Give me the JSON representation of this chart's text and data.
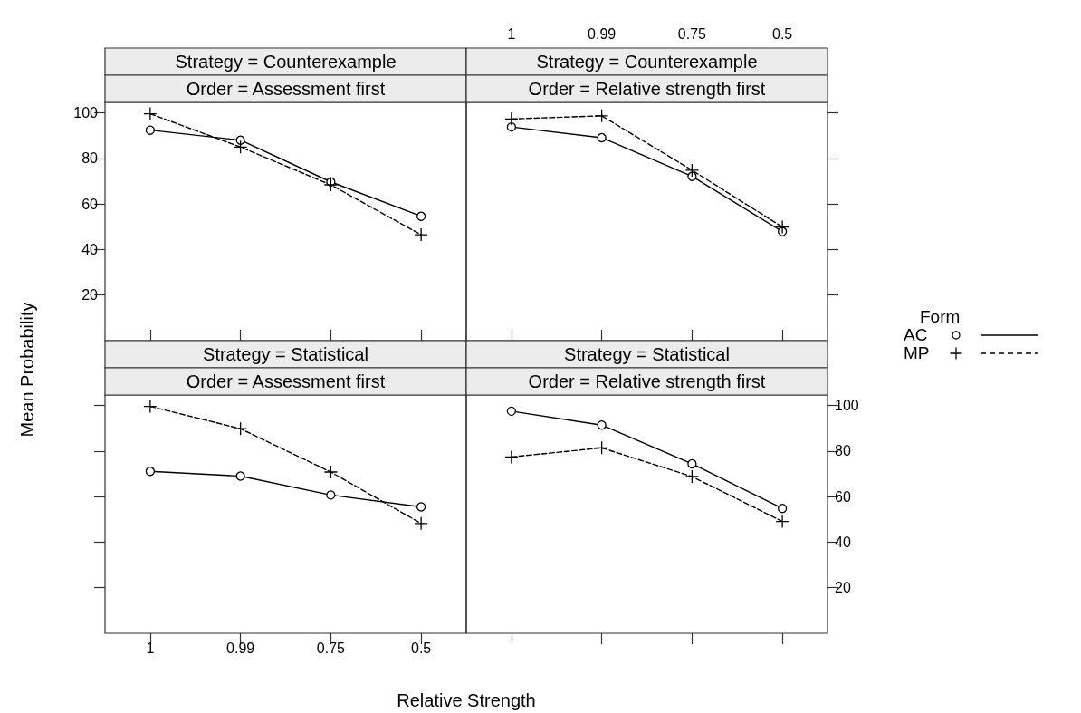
{
  "chart_data": [
    {
      "type": "line",
      "title": "Strategy = Counterexample",
      "subtitle": "Order = Assessment first",
      "ylabel": "Mean Probability",
      "categories": [
        "1",
        "0.99",
        "0.75",
        "0.5"
      ],
      "ylim": [
        0,
        104.6
      ],
      "yticks": [
        20,
        40,
        60,
        80,
        100
      ],
      "tick_labels": "y",
      "series": [
        {
          "color": "#000000",
          "marker": "circle",
          "line_style": "solid",
          "values": [
            92.4,
            88,
            69.7,
            54.6
          ]
        },
        {
          "color": "#000000",
          "marker": "cross",
          "line_style": "dashed",
          "values": [
            99.6,
            85,
            68.4,
            46.5
          ]
        }
      ]
    },
    {
      "type": "line",
      "title": "Strategy = Counterexample",
      "subtitle": "Order = Relative strength first",
      "legend": "right",
      "legend_title": "Form",
      "categories": [
        "1",
        "0.99",
        "0.75",
        "0.5"
      ],
      "ylim": [
        0,
        104.6
      ],
      "yticks": [
        20,
        40,
        60,
        80,
        100
      ],
      "tick_labels": "x",
      "series": [
        {
          "name": "AC",
          "color": "#000000",
          "marker": "circle",
          "line_style": "solid",
          "values": [
            93.8,
            89.1,
            72.1,
            47.9
          ]
        },
        {
          "name": "MP",
          "color": "#000000",
          "marker": "cross",
          "line_style": "dashed",
          "values": [
            97.3,
            98.7,
            74.8,
            49.9
          ]
        }
      ]
    },
    {
      "type": "line",
      "title": "Strategy = Statistical",
      "subtitle": "Order = Assessment first",
      "xlabel": "Relative Strength",
      "categories": [
        "1",
        "0.99",
        "0.75",
        "0.5"
      ],
      "ylim": [
        0,
        104.6
      ],
      "yticks": [
        20,
        40,
        60,
        80,
        100
      ],
      "tick_labels": "x",
      "series": [
        {
          "color": "#000000",
          "marker": "circle",
          "line_style": "solid",
          "values": [
            71.1,
            69.0,
            60.7,
            55.5
          ]
        },
        {
          "color": "#000000",
          "marker": "cross",
          "line_style": "dashed",
          "values": [
            99.6,
            89.8,
            70.8,
            48.2
          ]
        }
      ]
    },
    {
      "type": "line",
      "title": "Strategy = Statistical",
      "subtitle": "Order = Relative strength first",
      "categories": [
        "1",
        "0.99",
        "0.75",
        "0.5"
      ],
      "ylim": [
        0,
        104.6
      ],
      "yticks": [
        20,
        40,
        60,
        80,
        100
      ],
      "tick_labels": "y",
      "series": [
        {
          "color": "#000000",
          "marker": "circle",
          "line_style": "solid",
          "values": [
            97.5,
            91.4,
            74.4,
            54.8
          ]
        },
        {
          "color": "#000000",
          "marker": "cross",
          "line_style": "dashed",
          "values": [
            77.4,
            81.4,
            68.8,
            49.1
          ]
        }
      ]
    }
  ]
}
